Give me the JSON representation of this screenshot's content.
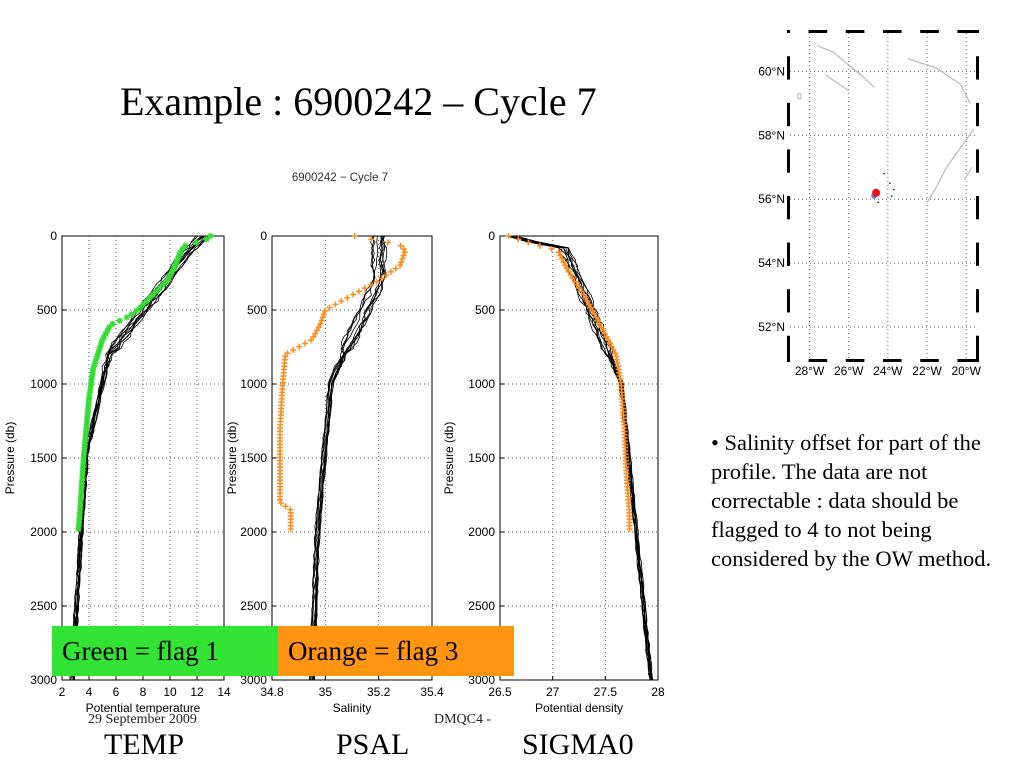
{
  "slide": {
    "title": "Example : 6900242 – Cycle 7",
    "bullet": "• Salinity offset for part of the profile. The data are not correctable : data should be flagged to 4 to not being considered by the OW method.",
    "footer_left": "29 September 2009",
    "footer_right": "DMQC4 -",
    "variable_labels": [
      "TEMP",
      "PSAL",
      "SIGMA0"
    ]
  },
  "legend": {
    "green": "Green = flag 1",
    "orange": "Orange = flag 3",
    "colors": {
      "green": "#33e333",
      "orange": "#ff9411",
      "green_marker": "#33dd33",
      "orange_marker": "#ff8c1a",
      "gray_line": "#bbbbbb"
    }
  },
  "chart_data": [
    {
      "type": "line",
      "title": "6900242 − Cycle 7",
      "xlabel": "Potential temperature",
      "ylabel": "Pressure (db)",
      "xlim": [
        2,
        14
      ],
      "ylim": [
        3000,
        0
      ],
      "xticks": [
        "2",
        "4",
        "6",
        "8",
        "10",
        "12",
        "14"
      ],
      "yticks": [
        "0",
        "500",
        "1000",
        "1500",
        "2000",
        "2500",
        "3000"
      ],
      "series": [
        {
          "points": [
            [
              13.0,
              0
            ],
            [
              12.6,
              30
            ],
            [
              11.2,
              60
            ],
            [
              10.8,
              100
            ],
            [
              10.4,
              200
            ],
            [
              9.8,
              300
            ],
            [
              8.7,
              400
            ],
            [
              7.6,
              500
            ],
            [
              6.8,
              550
            ],
            [
              5.6,
              600
            ],
            [
              5.0,
              700
            ],
            [
              4.3,
              900
            ],
            [
              4.0,
              1100
            ],
            [
              3.6,
              1500
            ],
            [
              3.3,
              1900
            ],
            [
              3.2,
              2000
            ]
          ]
        }
      ]
    },
    {
      "type": "line",
      "xlabel": "Salinity",
      "ylabel": "Pressure (db)",
      "xlim": [
        34.8,
        35.4
      ],
      "ylim": [
        3000,
        0
      ],
      "xticks": [
        "34.8",
        "35",
        "35.2",
        "35.4"
      ],
      "yticks": [
        "0",
        "500",
        "1000",
        "1500",
        "2000",
        "2500",
        "3000"
      ],
      "series": [
        {
          "points": [
            [
              35.11,
              0
            ],
            [
              35.28,
              60
            ],
            [
              35.3,
              100
            ],
            [
              35.28,
              200
            ],
            [
              35.2,
              300
            ],
            [
              35.1,
              400
            ],
            [
              35.0,
              500
            ],
            [
              34.98,
              600
            ],
            [
              34.95,
              700
            ],
            [
              34.85,
              800
            ],
            [
              34.84,
              1000
            ],
            [
              34.83,
              1300
            ],
            [
              34.83,
              1600
            ],
            [
              34.83,
              1800
            ],
            [
              34.87,
              1850
            ],
            [
              34.87,
              2000
            ]
          ]
        }
      ]
    },
    {
      "type": "line",
      "xlabel": "Potential density",
      "ylabel": "Pressure (db)",
      "xlim": [
        26.5,
        28
      ],
      "ylim": [
        3000,
        0
      ],
      "xticks": [
        "26.5",
        "27",
        "27.5",
        "28"
      ],
      "yticks": [
        "0",
        "500",
        "1000",
        "1500",
        "2000",
        "2500",
        "3000"
      ],
      "series": [
        {
          "points": [
            [
              26.58,
              0
            ],
            [
              26.75,
              40
            ],
            [
              27.05,
              100
            ],
            [
              27.12,
              200
            ],
            [
              27.2,
              300
            ],
            [
              27.3,
              400
            ],
            [
              27.45,
              600
            ],
            [
              27.6,
              800
            ],
            [
              27.65,
              1000
            ],
            [
              27.68,
              1300
            ],
            [
              27.7,
              1600
            ],
            [
              27.73,
              1900
            ],
            [
              27.73,
              2000
            ]
          ]
        }
      ]
    },
    {
      "type": "scatter",
      "xticks": [
        "28°W",
        "26°W",
        "24°W",
        "22°W",
        "20°W"
      ],
      "yticks": [
        "60°N",
        "58°N",
        "56°N",
        "54°N",
        "52°N"
      ],
      "xlim": [
        -29,
        -19.5
      ],
      "ylim": [
        51,
        61.2
      ],
      "series": [
        {
          "x": [
            -24.6
          ],
          "y": [
            56.2
          ]
        }
      ]
    }
  ]
}
